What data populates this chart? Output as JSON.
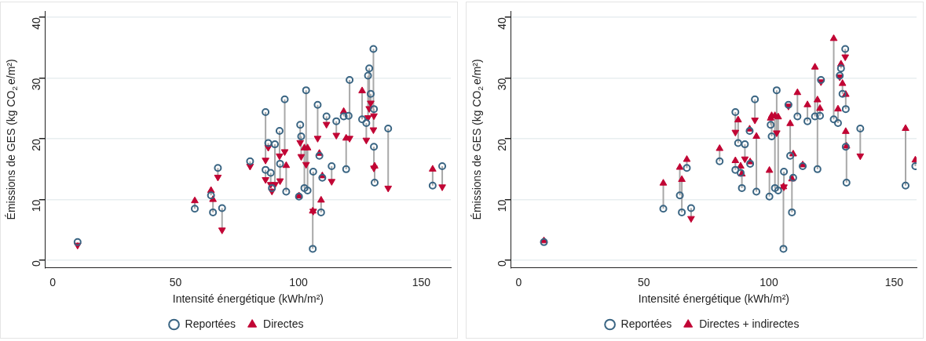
{
  "chart_data": [
    {
      "type": "scatter",
      "xlabel": "Intensité énergétique (kWh/m²)",
      "ylabel": "Émissions de GES (kg CO$_{2}$e/m²)",
      "xlim": [
        -3,
        162
      ],
      "xticks": [
        0,
        50,
        100,
        150
      ],
      "ylim": [
        -1.2,
        41
      ],
      "yticks": [
        0,
        10,
        20,
        30,
        40
      ],
      "grid": "y",
      "legend": "bottom",
      "x": [
        10.1,
        57.8,
        64.4,
        65.2,
        67.2,
        68.9,
        80.3,
        86.6,
        86.6,
        87.7,
        88.7,
        89.2,
        90.4,
        92.3,
        92.5,
        94.4,
        95.0,
        100.2,
        100.7,
        101.1,
        102.4,
        103.7,
        103.1,
        105.8,
        106.0,
        107.8,
        108.5,
        109.2,
        109.7,
        111.4,
        113.5,
        115.4,
        118.4,
        119.4,
        120.4,
        120.8,
        125.9,
        127.6,
        128.3,
        128.8,
        129.4,
        130.5,
        130.7,
        130.7,
        131.0,
        136.5,
        154.6,
        158.5
      ],
      "series": [
        {
          "name": "Reportées",
          "color": "#3a6583",
          "marker": "circle",
          "values": [
            3.0,
            8.5,
            10.7,
            7.9,
            15.2,
            8.6,
            16.3,
            24.4,
            14.9,
            19.3,
            14.4,
            11.9,
            19.1,
            21.3,
            15.9,
            26.5,
            11.3,
            10.5,
            22.3,
            20.4,
            11.9,
            11.5,
            28.0,
            1.9,
            14.6,
            25.6,
            17.2,
            7.9,
            13.6,
            23.7,
            15.5,
            22.9,
            23.7,
            15.0,
            23.8,
            29.7,
            23.2,
            22.6,
            30.4,
            31.6,
            27.4,
            34.8,
            24.9,
            18.7,
            12.8,
            21.7,
            12.3,
            15.5
          ]
        },
        {
          "name": "Directes",
          "color": "#c10534",
          "marker": "triangle",
          "values": [
            2.5,
            9.8,
            11.5,
            10.0,
            13.7,
            5.0,
            15.5,
            16.5,
            13.3,
            18.6,
            12.5,
            11.4,
            12.5,
            17.2,
            13.1,
            17.9,
            15.6,
            10.6,
            19.4,
            17.1,
            18.5,
            18.5,
            15.8,
            8.1,
            8.1,
            20.1,
            17.6,
            9.9,
            13.9,
            22.4,
            13.0,
            20.6,
            24.5,
            20.1,
            null,
            20.1,
            27.9,
            19.8,
            23.5,
            25.0,
            25.9,
            21.5,
            23.8,
            15.2,
            15.5,
            11.9,
            15.0,
            12.1
          ],
          "errors": [
            [
              2.5,
              3.0
            ],
            [
              8.5,
              9.8
            ],
            [
              10.7,
              11.5
            ],
            [
              7.9,
              10.0
            ],
            [
              13.7,
              15.2
            ],
            [
              5.0,
              8.6
            ],
            [
              15.5,
              16.3
            ],
            [
              16.5,
              24.4
            ],
            [
              13.3,
              14.9
            ],
            [
              18.6,
              19.3
            ],
            [
              12.5,
              14.4
            ],
            [
              11.4,
              11.9
            ],
            [
              12.5,
              19.1
            ],
            [
              17.2,
              21.3
            ],
            [
              13.1,
              15.9
            ],
            [
              17.9,
              26.5
            ],
            [
              11.3,
              15.6
            ],
            null,
            [
              19.4,
              22.3
            ],
            [
              17.1,
              20.4
            ],
            [
              11.9,
              18.5
            ],
            [
              11.5,
              18.5
            ],
            [
              15.8,
              28.0
            ],
            [
              1.9,
              8.1
            ],
            [
              8.1,
              14.6
            ],
            [
              20.1,
              25.6
            ],
            null,
            [
              7.9,
              9.9
            ],
            null,
            [
              22.4,
              23.7
            ],
            [
              13.0,
              15.5
            ],
            [
              20.6,
              22.9
            ],
            [
              23.7,
              24.5
            ],
            [
              15.0,
              20.1
            ],
            null,
            [
              20.1,
              29.7
            ],
            [
              23.2,
              27.9
            ],
            [
              19.8,
              22.6
            ],
            [
              23.5,
              30.4
            ],
            [
              25.0,
              31.6
            ],
            [
              25.9,
              27.4
            ],
            [
              21.5,
              34.8
            ],
            [
              23.8,
              24.9
            ],
            [
              15.2,
              18.7
            ],
            [
              12.8,
              15.5
            ],
            [
              11.9,
              21.7
            ],
            [
              12.3,
              15.0
            ],
            [
              12.1,
              15.5
            ]
          ]
        }
      ]
    },
    {
      "type": "scatter",
      "xlabel": "Intensité énergétique (kWh/m²)",
      "ylabel": "Émissions de GES (kg CO$_{2}$e/m²)",
      "xlim": [
        -3,
        159
      ],
      "xticks": [
        0,
        50,
        100,
        150
      ],
      "ylim": [
        -1.2,
        41
      ],
      "yticks": [
        0,
        10,
        20,
        30,
        40
      ],
      "grid": "y",
      "legend": "bottom",
      "x": [
        10.1,
        57.8,
        64.4,
        65.2,
        67.2,
        68.9,
        80.3,
        86.6,
        86.6,
        87.7,
        88.7,
        89.2,
        90.4,
        92.3,
        92.5,
        94.4,
        95.0,
        100.2,
        100.7,
        101.1,
        102.4,
        103.7,
        103.1,
        105.8,
        106.0,
        107.8,
        108.5,
        109.2,
        109.7,
        111.4,
        113.5,
        115.4,
        118.4,
        119.4,
        120.4,
        120.8,
        125.9,
        127.6,
        128.3,
        128.8,
        129.4,
        130.5,
        130.7,
        130.7,
        131.0,
        136.5,
        154.6,
        158.5
      ],
      "series": [
        {
          "name": "Reportées",
          "color": "#3a6583",
          "marker": "circle",
          "values": [
            3.0,
            8.5,
            10.7,
            7.9,
            15.2,
            8.6,
            16.3,
            24.4,
            14.9,
            19.3,
            14.4,
            11.9,
            19.1,
            21.3,
            15.9,
            26.5,
            11.3,
            10.5,
            22.3,
            20.4,
            11.9,
            11.5,
            28.0,
            1.9,
            14.6,
            25.6,
            17.2,
            7.9,
            13.6,
            23.7,
            15.5,
            22.9,
            23.7,
            15.0,
            23.8,
            29.7,
            23.2,
            22.6,
            30.4,
            31.6,
            27.4,
            34.8,
            24.9,
            18.7,
            12.8,
            21.7,
            12.3,
            15.5
          ]
        },
        {
          "name": "Directes + indirectes",
          "color": "#c10534",
          "marker": "triangle",
          "values": [
            3.2,
            12.7,
            15.3,
            13.3,
            16.6,
            6.9,
            18.4,
            21.1,
            16.4,
            23.1,
            15.5,
            14.2,
            16.7,
            21.6,
            16.2,
            23.1,
            20.4,
            14.8,
            23.4,
            23.8,
            23.8,
            23.6,
            21.0,
            12.1,
            12.1,
            25.4,
            22.5,
            13.4,
            17.5,
            27.6,
            15.7,
            25.6,
            31.8,
            26.4,
            25.0,
            29.4,
            36.5,
            24.9,
            30.2,
            32.3,
            29.1,
            33.5,
            27.3,
            21.2,
            18.8,
            17.2,
            21.7,
            16.5
          ],
          "errors": [
            [
              3.0,
              3.2
            ],
            [
              8.5,
              12.7
            ],
            [
              10.7,
              15.3
            ],
            [
              7.9,
              13.3
            ],
            [
              15.2,
              16.6
            ],
            [
              6.9,
              8.6
            ],
            [
              16.3,
              18.4
            ],
            [
              21.1,
              24.4
            ],
            [
              14.9,
              16.4
            ],
            [
              19.3,
              23.1
            ],
            [
              14.4,
              15.5
            ],
            [
              11.9,
              14.2
            ],
            [
              16.7,
              19.1
            ],
            [
              21.3,
              21.6
            ],
            [
              15.9,
              16.2
            ],
            [
              23.1,
              26.5
            ],
            [
              11.3,
              20.4
            ],
            [
              10.5,
              14.8
            ],
            [
              22.3,
              23.4
            ],
            [
              20.4,
              23.8
            ],
            [
              11.9,
              23.8
            ],
            [
              11.5,
              23.6
            ],
            [
              21.0,
              28.0
            ],
            [
              1.9,
              12.1
            ],
            [
              12.1,
              14.6
            ],
            [
              25.4,
              25.6
            ],
            [
              17.2,
              22.5
            ],
            [
              7.9,
              13.4
            ],
            [
              13.6,
              17.5
            ],
            [
              23.7,
              27.6
            ],
            [
              15.5,
              15.7
            ],
            [
              22.9,
              25.6
            ],
            [
              23.7,
              31.8
            ],
            [
              15.0,
              26.4
            ],
            [
              23.8,
              25.0
            ],
            [
              29.4,
              29.7
            ],
            [
              23.2,
              36.5
            ],
            [
              22.6,
              24.9
            ],
            [
              30.2,
              30.4
            ],
            [
              31.6,
              32.3
            ],
            [
              27.4,
              29.1
            ],
            [
              33.5,
              34.8
            ],
            [
              24.9,
              27.3
            ],
            [
              18.7,
              21.2
            ],
            [
              12.8,
              18.8
            ],
            [
              17.2,
              21.7
            ],
            [
              12.3,
              21.7
            ],
            [
              15.5,
              16.5
            ]
          ]
        }
      ]
    }
  ]
}
